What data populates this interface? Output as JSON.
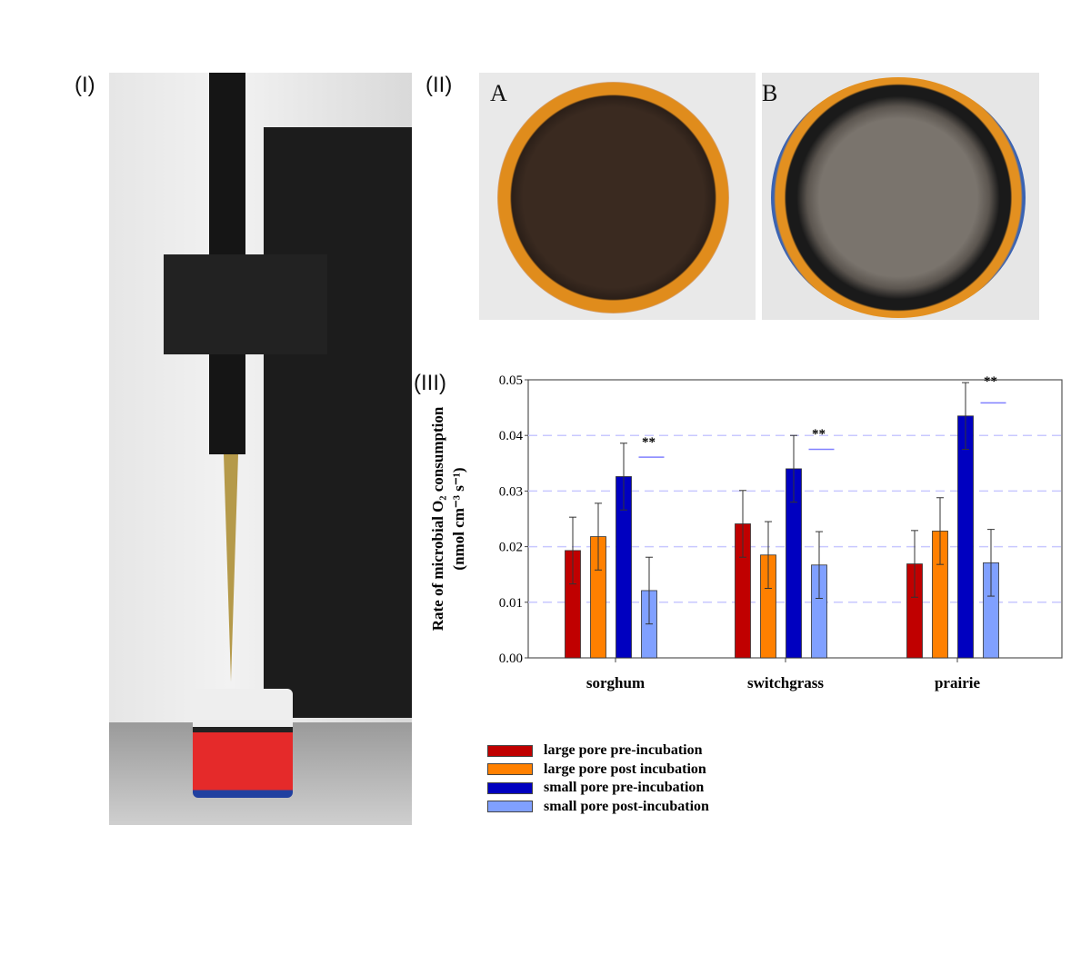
{
  "panels": {
    "panel1_label": "(I)",
    "panel2_label": "(II)",
    "panel2_a": "A",
    "panel2_b": "B",
    "panel3_label": "(III)"
  },
  "chart_data": {
    "type": "bar",
    "ylabel_line1": "Rate of microbial O₂ consumption",
    "ylabel_line2": "(nmol cm⁻³ s⁻¹)",
    "xlabel": "",
    "ylim": [
      0,
      0.05
    ],
    "yticks": [
      "0.00",
      "0.01",
      "0.02",
      "0.03",
      "0.04",
      "0.05"
    ],
    "grid": "horizontal dashed",
    "legend_placement": "below",
    "categories": [
      "sorghum",
      "switchgrass",
      "prairie"
    ],
    "series": [
      {
        "name": "large pore pre-incubation",
        "color": "#c00000",
        "values": [
          0.0193,
          0.0241,
          0.0169
        ],
        "errors": [
          0.006,
          0.006,
          0.006
        ]
      },
      {
        "name": "large pore post incubation",
        "color": "#ff8000",
        "values": [
          0.0218,
          0.0185,
          0.0228
        ],
        "errors": [
          0.006,
          0.006,
          0.006
        ]
      },
      {
        "name": "small pore pre-incubation",
        "color": "#0000c0",
        "values": [
          0.0326,
          0.034,
          0.0435
        ],
        "errors": [
          0.006,
          0.006,
          0.006
        ]
      },
      {
        "name": "small pore post-incubation",
        "color": "#80a0ff",
        "values": [
          0.0121,
          0.0167,
          0.0171
        ],
        "errors": [
          0.006,
          0.006,
          0.006
        ]
      }
    ],
    "annotations": [
      "**",
      "**",
      "**"
    ]
  }
}
